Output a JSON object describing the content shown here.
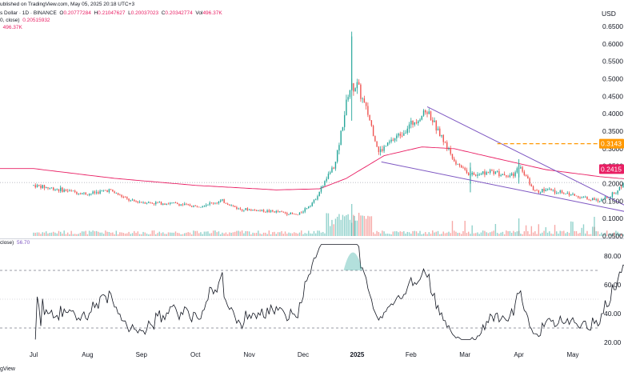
{
  "header": {
    "published": "ublished on TradingView.com, May 05, 2025 20:18 UTC+3",
    "symbol": "s Dollar · 1D · BINANCE",
    "o_label": "O",
    "o_value": "0.20777284",
    "h_label": "H",
    "h_value": "0.21047627",
    "l_label": "L",
    "l_value": "0.20037023",
    "c_label": "C",
    "c_value": "0.20342774",
    "vol_label": "Vol",
    "vol_value": "496.37K",
    "ma_label": "0, close)",
    "ma_value": "0.20515932",
    "vol_ma_value": "496.37K"
  },
  "price_axis": {
    "currency": "USD",
    "ticks": [
      "0.6500",
      "0.6000",
      "0.5500",
      "0.5000",
      "0.4500",
      "0.4000",
      "0.3500",
      "0.3000",
      "0.2500",
      "0.2000",
      "0.1500",
      "0.1000",
      "0.0500"
    ],
    "tags": [
      {
        "label": "0.3143",
        "value": 0.3143,
        "color": "#ff9800"
      },
      {
        "label": "0.2415",
        "value": 0.2415,
        "color": "#e91e63"
      }
    ]
  },
  "rsi": {
    "label": "close)",
    "value": "56.70",
    "ticks": [
      "80.00",
      "60.00",
      "40.00",
      "20.00"
    ],
    "upper": 70,
    "lower": 30,
    "mid": 50
  },
  "time_axis": {
    "labels": [
      "Jul",
      "Aug",
      "Sep",
      "Oct",
      "Nov",
      "Dec",
      "2025",
      "Feb",
      "Mar",
      "Apr",
      "May"
    ]
  },
  "footer": {
    "brand": "gView"
  },
  "colors": {
    "up": "#26a69a",
    "down": "#ef5350",
    "ma": "#e91e63",
    "trend": "#7e57c2",
    "resist": "#ff9800"
  },
  "chart_data": {
    "type": "candlestick",
    "price_range": [
      0.05,
      0.65
    ],
    "rsi_range": [
      20,
      90
    ],
    "anchors": [
      {
        "m": 0,
        "p": 0.195
      },
      {
        "m": 0.4,
        "p": 0.185
      },
      {
        "m": 1.0,
        "p": 0.17
      },
      {
        "m": 1.4,
        "p": 0.182
      },
      {
        "m": 1.8,
        "p": 0.15
      },
      {
        "m": 2.2,
        "p": 0.145
      },
      {
        "m": 2.6,
        "p": 0.143
      },
      {
        "m": 3.0,
        "p": 0.135
      },
      {
        "m": 3.5,
        "p": 0.15
      },
      {
        "m": 3.8,
        "p": 0.128
      },
      {
        "m": 4.2,
        "p": 0.123
      },
      {
        "m": 4.6,
        "p": 0.118
      },
      {
        "m": 4.9,
        "p": 0.11
      },
      {
        "m": 5.2,
        "p": 0.15
      },
      {
        "m": 5.6,
        "p": 0.26
      },
      {
        "m": 5.85,
        "p": 0.47
      },
      {
        "m": 6.0,
        "p": 0.48
      },
      {
        "m": 6.2,
        "p": 0.4
      },
      {
        "m": 6.4,
        "p": 0.29
      },
      {
        "m": 6.7,
        "p": 0.33
      },
      {
        "m": 7.0,
        "p": 0.37
      },
      {
        "m": 7.3,
        "p": 0.41
      },
      {
        "m": 7.5,
        "p": 0.35
      },
      {
        "m": 7.8,
        "p": 0.27
      },
      {
        "m": 8.1,
        "p": 0.225
      },
      {
        "m": 8.5,
        "p": 0.235
      },
      {
        "m": 8.9,
        "p": 0.22
      },
      {
        "m": 9.0,
        "p": 0.25
      },
      {
        "m": 9.3,
        "p": 0.18
      },
      {
        "m": 9.6,
        "p": 0.182
      },
      {
        "m": 9.9,
        "p": 0.17
      },
      {
        "m": 10.2,
        "p": 0.16
      },
      {
        "m": 10.5,
        "p": 0.15
      },
      {
        "m": 10.8,
        "p": 0.175
      },
      {
        "m": 11.0,
        "p": 0.215
      },
      {
        "m": 11.3,
        "p": 0.225
      },
      {
        "m": 11.6,
        "p": 0.203
      }
    ],
    "ma_anchors": [
      {
        "m": 0,
        "p": 0.243
      },
      {
        "m": 1.5,
        "p": 0.215
      },
      {
        "m": 3.0,
        "p": 0.195
      },
      {
        "m": 4.5,
        "p": 0.182
      },
      {
        "m": 5.3,
        "p": 0.185
      },
      {
        "m": 5.8,
        "p": 0.215
      },
      {
        "m": 6.5,
        "p": 0.28
      },
      {
        "m": 7.2,
        "p": 0.305
      },
      {
        "m": 7.8,
        "p": 0.3
      },
      {
        "m": 8.5,
        "p": 0.275
      },
      {
        "m": 9.5,
        "p": 0.24
      },
      {
        "m": 10.5,
        "p": 0.22
      },
      {
        "m": 11.6,
        "p": 0.205
      }
    ],
    "spikes": [
      {
        "m": 5.9,
        "high": 0.635,
        "low": 0.38
      },
      {
        "m": 9.0,
        "high": 0.27,
        "low": 0.2
      },
      {
        "m": 8.1,
        "high": 0.26,
        "low": 0.175
      }
    ],
    "trendlines": [
      {
        "from": {
          "m": 7.3,
          "p": 0.42
        },
        "to": {
          "m": 11.35,
          "p": 0.108
        }
      },
      {
        "from": {
          "m": 6.45,
          "p": 0.262
        },
        "to": {
          "m": 11.35,
          "p": 0.108
        }
      }
    ],
    "levels": [
      {
        "from_m": 8.6,
        "p": 0.3143,
        "color": "#ff9800"
      },
      {
        "from_m": 11.3,
        "p": 0.2415,
        "color": "#e91e63"
      }
    ]
  }
}
